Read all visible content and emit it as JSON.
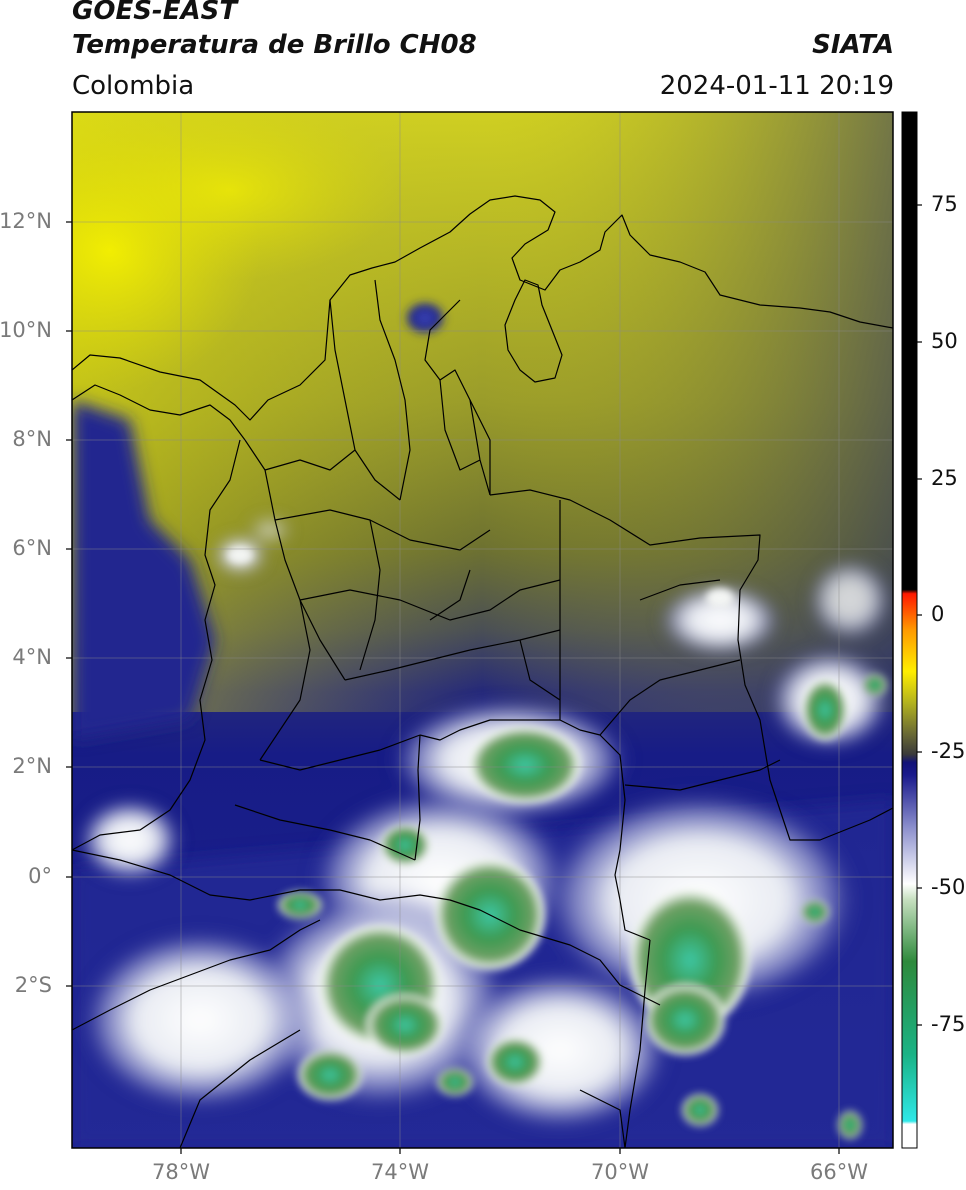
{
  "header": {
    "line1": "GOES-EAST",
    "line2": "Temperatura de Brillo CH08",
    "brand": "SIATA",
    "region": "Colombia",
    "timestamp": "2024-01-11 20:19"
  },
  "map": {
    "lat_labels": [
      "12°N",
      "10°N",
      "8°N",
      "6°N",
      "4°N",
      "2°N",
      "0°",
      "2°S"
    ],
    "lon_labels": [
      "78°W",
      "74°W",
      "70°W",
      "66°W"
    ],
    "colors": {
      "dry_yellow": "#d8d80e",
      "olive": "#8c8f2a",
      "dark_slate": "#3c4462",
      "navy": "#1a1f86",
      "cloud_white": "#f2f4f6",
      "cloud_green": "#3f9a4e",
      "cloud_teal": "#38c7a8",
      "border": "#000000"
    }
  },
  "colorbar": {
    "ticks": [
      "75",
      "50",
      "25",
      "0",
      "-25",
      "-50",
      "-75"
    ],
    "stops": [
      "#ffffff",
      "#2fe0e0",
      "#1ab386",
      "#3f8e3e",
      "#ffffff",
      "#7a7ec4",
      "#13137f",
      "#3a3a3a",
      "#b9b51b",
      "#ffe800",
      "#ff8a00",
      "#ff0000",
      "#000000"
    ]
  }
}
